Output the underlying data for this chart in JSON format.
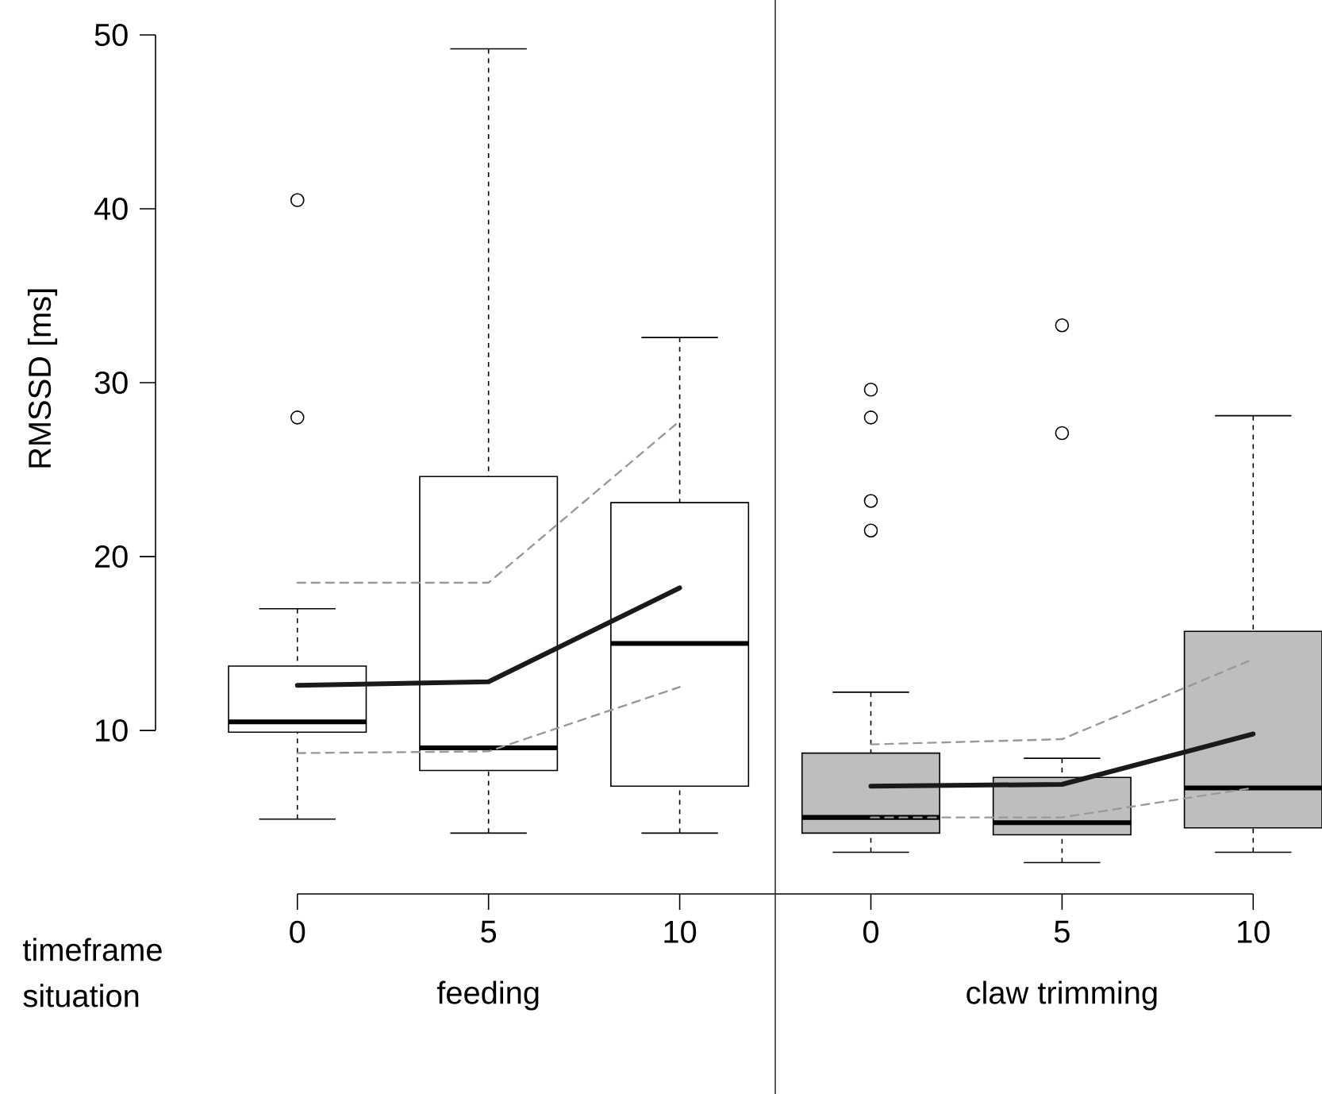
{
  "chart_data": {
    "type": "box",
    "ylabel": "RMSSD [ms]",
    "categories": [
      "0",
      "5",
      "10",
      "0",
      "5",
      "10"
    ],
    "ylim": [
      0.6,
      50
    ],
    "yticks": [
      10,
      20,
      30,
      40,
      50
    ],
    "colors": [
      "#ffffff",
      "#ffffff",
      "#ffffff",
      "#bebebe",
      "#bebebe",
      "#bebebe"
    ],
    "boxes": [
      {
        "low": 4.9,
        "q1": 9.9,
        "median": 10.5,
        "q3": 13.7,
        "high": 17.0,
        "outliers": [
          40.5,
          28.0
        ]
      },
      {
        "low": 4.1,
        "q1": 7.7,
        "median": 9.0,
        "q3": 24.6,
        "high": 49.2
      },
      {
        "low": 4.1,
        "q1": 6.8,
        "median": 15.0,
        "q3": 23.1,
        "high": 32.6
      },
      {
        "low": 3.0,
        "q1": 4.1,
        "median": 5.0,
        "q3": 8.7,
        "high": 12.2,
        "outliers": [
          29.6,
          28.0,
          23.2,
          21.5
        ]
      },
      {
        "low": 2.4,
        "q1": 4.0,
        "median": 4.7,
        "q3": 7.3,
        "high": 8.4,
        "outliers": [
          33.3,
          27.1
        ]
      },
      {
        "low": 3.0,
        "q1": 4.4,
        "median": 6.7,
        "q3": 15.7,
        "high": 28.1
      }
    ],
    "series": [
      {
        "type": "line",
        "color": "#1a1a1a",
        "values": [
          12.6,
          12.8,
          18.2,
          null,
          null,
          null
        ]
      },
      {
        "type": "line",
        "color": "#1a1a1a",
        "values": [
          null,
          null,
          null,
          6.8,
          6.9,
          9.8
        ]
      },
      {
        "type": "line",
        "color": "#999999",
        "line_style": "dashed",
        "values": [
          18.5,
          18.5,
          27.8,
          null,
          null,
          null
        ]
      },
      {
        "type": "line",
        "color": "#999999",
        "line_style": "dashed",
        "values": [
          8.7,
          8.8,
          12.5,
          null,
          null,
          null
        ]
      },
      {
        "type": "line",
        "color": "#999999",
        "line_style": "dashed",
        "values": [
          null,
          null,
          null,
          9.2,
          9.5,
          14.1
        ]
      },
      {
        "type": "line",
        "color": "#999999",
        "line_style": "dashed",
        "values": [
          null,
          null,
          null,
          5.0,
          5.0,
          6.7
        ]
      }
    ],
    "annotations": [
      "timeframe",
      "situation",
      "feeding",
      "claw trimming"
    ]
  }
}
